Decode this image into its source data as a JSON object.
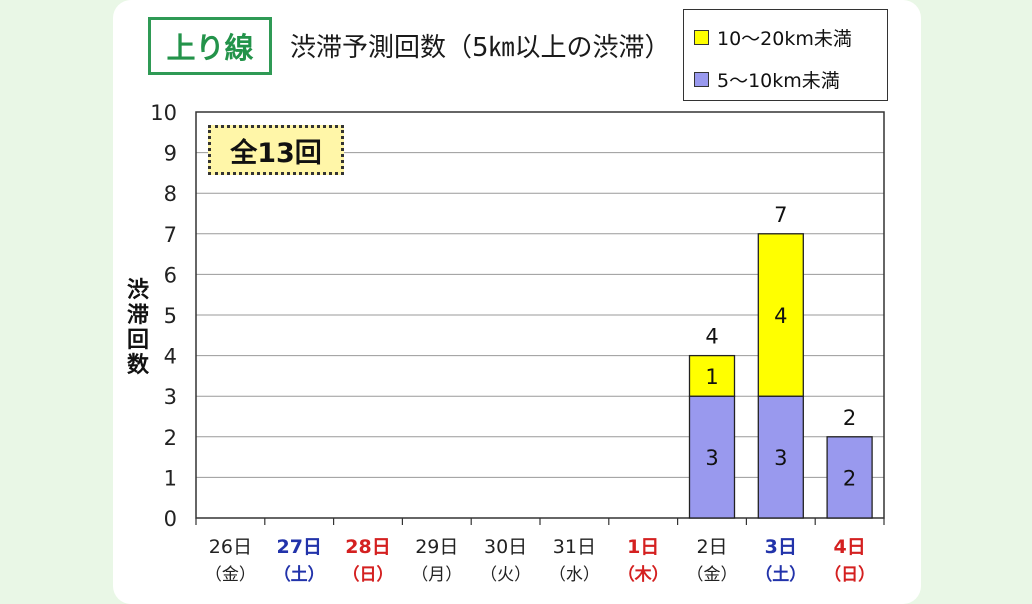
{
  "header": {
    "direction_label": "上り線",
    "title": "渋滞予測回数（5㎞以上の渋滞）",
    "total_label": "全13回"
  },
  "legend": [
    {
      "name": "10～20km未満",
      "color": "#ffff00"
    },
    {
      "name": "5～10km未満",
      "color": "#9999ee"
    }
  ],
  "chart_data": {
    "type": "bar",
    "stacked": true,
    "ylabel": "渋滞回数",
    "ylim": [
      0,
      10
    ],
    "yticks": [
      0,
      1,
      2,
      3,
      4,
      5,
      6,
      7,
      8,
      9,
      10
    ],
    "grid": true,
    "legend_position": "top-right",
    "categories": [
      {
        "date": "26日",
        "day": "（金）",
        "color": "#222222"
      },
      {
        "date": "27日",
        "day": "（土）",
        "color": "#2233aa"
      },
      {
        "date": "28日",
        "day": "（日）",
        "color": "#d42020"
      },
      {
        "date": "29日",
        "day": "（月）",
        "color": "#222222"
      },
      {
        "date": "30日",
        "day": "（火）",
        "color": "#222222"
      },
      {
        "date": "31日",
        "day": "（水）",
        "color": "#222222"
      },
      {
        "date": "1日",
        "day": "（木）",
        "color": "#d42020"
      },
      {
        "date": "2日",
        "day": "（金）",
        "color": "#222222"
      },
      {
        "date": "3日",
        "day": "（土）",
        "color": "#2233aa"
      },
      {
        "date": "4日",
        "day": "（日）",
        "color": "#d42020"
      }
    ],
    "series": [
      {
        "name": "5～10km未満",
        "color": "#9999ee",
        "values": [
          0,
          0,
          0,
          0,
          0,
          0,
          0,
          3,
          3,
          2
        ]
      },
      {
        "name": "10～20km未満",
        "color": "#ffff00",
        "values": [
          0,
          0,
          0,
          0,
          0,
          0,
          0,
          1,
          4,
          0
        ]
      }
    ],
    "totals": [
      0,
      0,
      0,
      0,
      0,
      0,
      0,
      4,
      7,
      2
    ]
  }
}
